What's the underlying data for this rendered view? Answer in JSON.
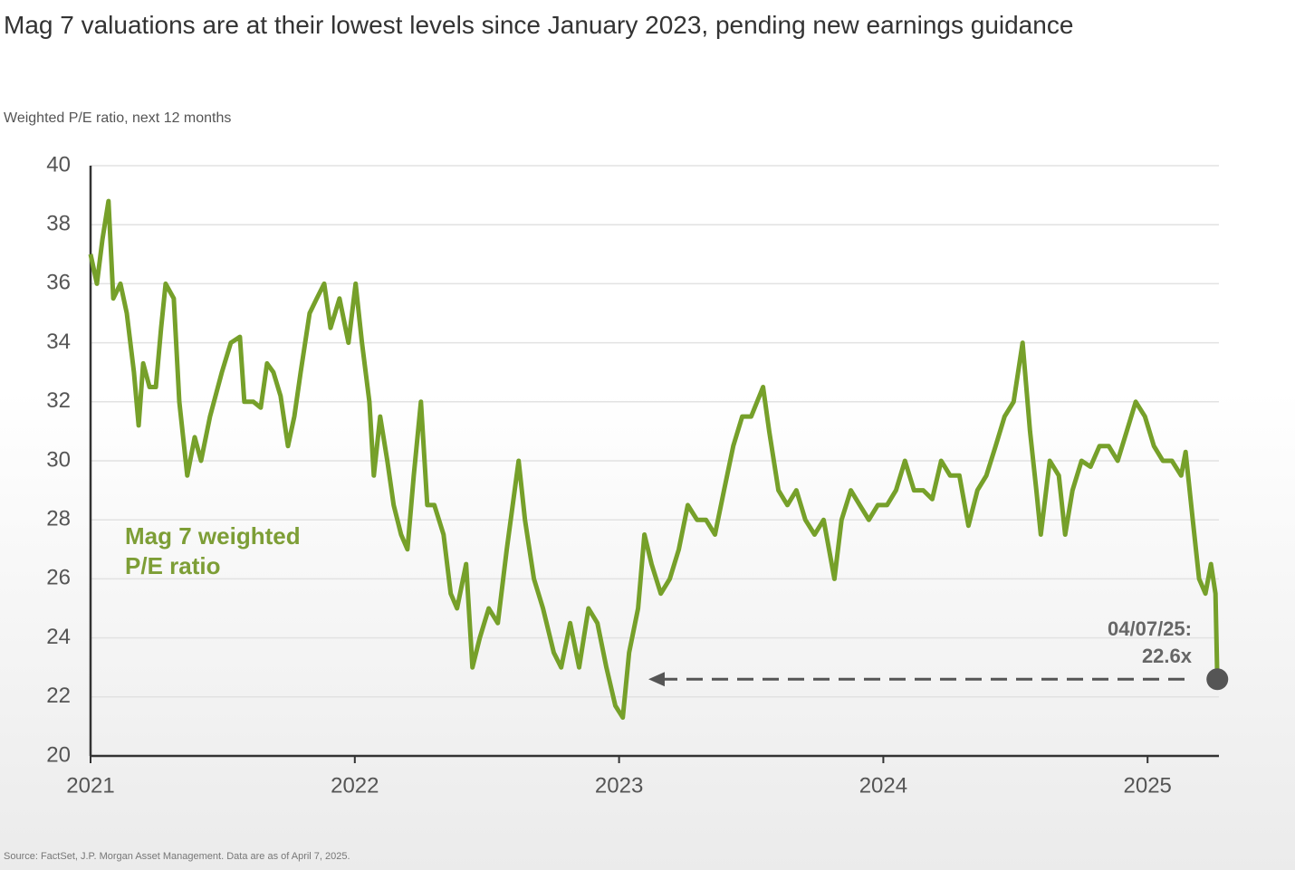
{
  "chart_data": {
    "type": "line",
    "title": "Mag 7 valuations are at their lowest levels since January 2023, pending new earnings guidance",
    "subtitle": "Weighted P/E ratio, next 12 months",
    "source": "Source: FactSet, J.P. Morgan Asset Management. Data are as of April 7, 2025.",
    "annotation": [
      "04/07/25:",
      "22.6x"
    ],
    "xlim": [
      2021,
      2025.27
    ],
    "xticks": [
      2021,
      2022,
      2023,
      2024,
      2025
    ],
    "ylim": [
      20,
      40
    ],
    "yticks": [
      20,
      22,
      24,
      26,
      28,
      30,
      32,
      34,
      36,
      38,
      40
    ],
    "grid": true,
    "x": [
      2021.0,
      2021.024,
      2021.045,
      2021.068,
      2021.086,
      2021.113,
      2021.137,
      2021.164,
      2021.182,
      2021.199,
      2021.223,
      2021.247,
      2021.267,
      2021.284,
      2021.315,
      2021.336,
      2021.366,
      2021.394,
      2021.418,
      2021.452,
      2021.497,
      2021.531,
      2021.565,
      2021.582,
      2021.616,
      2021.644,
      2021.668,
      2021.692,
      2021.719,
      2021.747,
      2021.771,
      2021.795,
      2021.829,
      2021.856,
      2021.884,
      2021.908,
      2021.942,
      2021.976,
      2022.003,
      2022.027,
      2022.055,
      2022.072,
      2022.096,
      2022.123,
      2022.147,
      2022.175,
      2022.199,
      2022.223,
      2022.25,
      2022.274,
      2022.301,
      2022.336,
      2022.363,
      2022.387,
      2022.421,
      2022.445,
      2022.473,
      2022.507,
      2022.541,
      2022.575,
      2022.62,
      2022.644,
      2022.678,
      2022.712,
      2022.753,
      2022.781,
      2022.815,
      2022.849,
      2022.884,
      2022.918,
      2022.952,
      2022.986,
      2023.014,
      2023.038,
      2023.072,
      2023.096,
      2023.123,
      2023.158,
      2023.192,
      2023.226,
      2023.26,
      2023.295,
      2023.329,
      2023.363,
      2023.397,
      2023.432,
      2023.466,
      2023.5,
      2023.545,
      2023.568,
      2023.603,
      2023.637,
      2023.671,
      2023.705,
      2023.74,
      2023.774,
      2023.815,
      2023.842,
      2023.877,
      2023.911,
      2023.945,
      2023.979,
      2024.014,
      2024.048,
      2024.082,
      2024.116,
      2024.151,
      2024.185,
      2024.219,
      2024.253,
      2024.288,
      2024.322,
      2024.356,
      2024.39,
      2024.425,
      2024.459,
      2024.493,
      2024.527,
      2024.555,
      2024.579,
      2024.596,
      2024.63,
      2024.664,
      2024.688,
      2024.716,
      2024.75,
      2024.784,
      2024.818,
      2024.853,
      2024.887,
      2024.921,
      2024.955,
      2024.99,
      2025.024,
      2025.058,
      2025.092,
      2025.127,
      2025.144,
      2025.171,
      2025.195,
      2025.219,
      2025.24,
      2025.257,
      2025.264
    ],
    "series": [
      {
        "name": "Mag 7 weighted P/E ratio",
        "color": "#76a02a",
        "values": [
          37,
          36,
          37.5,
          38.8,
          35.5,
          36,
          35,
          33,
          31.2,
          33.3,
          32.5,
          32.5,
          34.5,
          36,
          35.5,
          32,
          29.5,
          30.8,
          30,
          31.5,
          33,
          34,
          34.2,
          32,
          32,
          31.8,
          33.3,
          33,
          32.2,
          30.5,
          31.5,
          33,
          35,
          35.5,
          36,
          34.5,
          35.5,
          34,
          36,
          34,
          32,
          29.5,
          31.5,
          30,
          28.5,
          27.5,
          27,
          29.5,
          32,
          28.5,
          28.5,
          27.5,
          25.5,
          25,
          26.5,
          23,
          24,
          25,
          24.5,
          27,
          30,
          28,
          26,
          25,
          23.5,
          23,
          24.5,
          23,
          25,
          24.5,
          23,
          21.7,
          21.3,
          23.5,
          25,
          27.5,
          26.5,
          25.5,
          26,
          27,
          28.5,
          28,
          28,
          27.5,
          29,
          30.5,
          31.5,
          31.5,
          32.5,
          31,
          29,
          28.5,
          29,
          28,
          27.5,
          28,
          26,
          28,
          29,
          28.5,
          28,
          28.5,
          28.5,
          29,
          30,
          29,
          29,
          28.7,
          30,
          29.5,
          29.5,
          27.8,
          29,
          29.5,
          30.5,
          31.5,
          32,
          34,
          31,
          29,
          27.5,
          30,
          29.5,
          27.5,
          29,
          30,
          29.8,
          30.5,
          30.5,
          30,
          31,
          32,
          31.5,
          30.5,
          30,
          30,
          29.5,
          30.3,
          28,
          26,
          25.5,
          26.5,
          25.5,
          22.6
        ]
      }
    ]
  }
}
